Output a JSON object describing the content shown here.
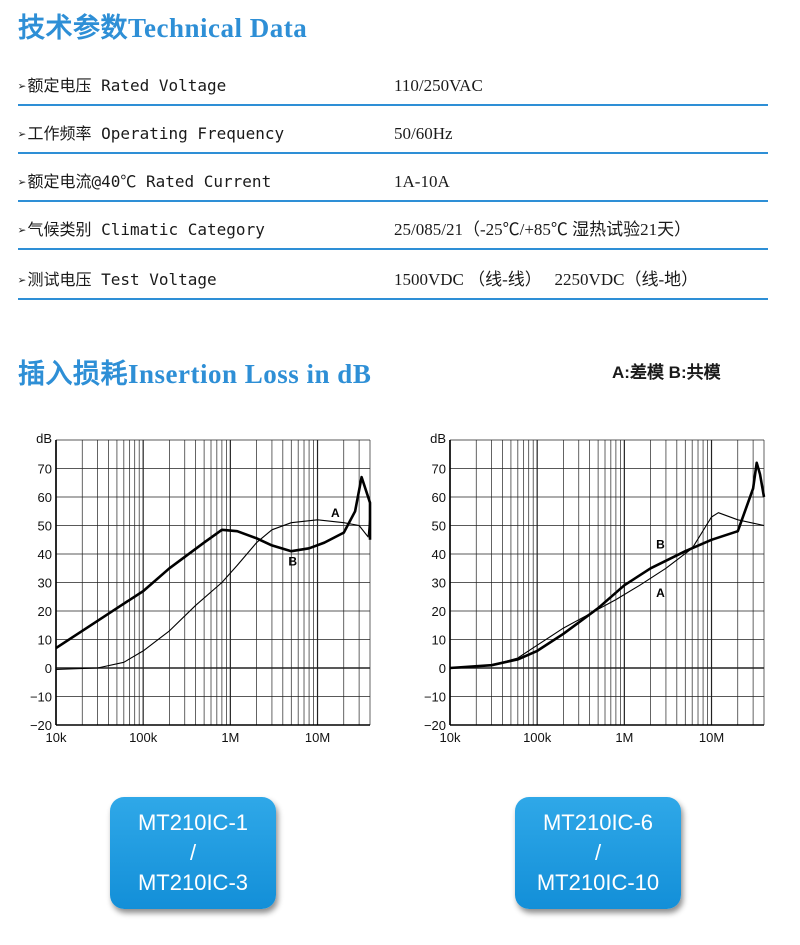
{
  "tech": {
    "title": "技术参数Technical Data",
    "rows": [
      {
        "label": "额定电压 Rated Voltage",
        "value": "110/250VAC"
      },
      {
        "label": "工作频率 Operating Frequency",
        "value": "50/60Hz"
      },
      {
        "label": "额定电流@40℃ Rated Current",
        "value": "1A-10A"
      },
      {
        "label": "气候类别 Climatic Category",
        "value": "25/085/21（-25℃/+85℃ 湿热试验21天）"
      },
      {
        "label": "测试电压 Test Voltage",
        "value": "1500VDC （线-线）   2250VDC（线-地）"
      }
    ]
  },
  "loss": {
    "title": "插入损耗Insertion Loss in dB",
    "legend": "A:差模 B:共模"
  },
  "colors": {
    "accent": "#2e8fd6",
    "button": "#1a9be0"
  },
  "chart_data": [
    {
      "type": "line",
      "ylabel": "dB",
      "ylim": [
        -20,
        80
      ],
      "yticks": [
        70,
        60,
        50,
        40,
        30,
        20,
        10,
        0,
        -10,
        -20
      ],
      "xscale": "log",
      "xlim": [
        10000,
        40000000
      ],
      "xticks": [
        {
          "v": 10000,
          "label": "10k"
        },
        {
          "v": 100000,
          "label": "100k"
        },
        {
          "v": 1000000,
          "label": "1M"
        },
        {
          "v": 10000000,
          "label": "10M"
        }
      ],
      "grid": true,
      "series": [
        {
          "name": "A",
          "label_at": [
            16000000,
            53
          ],
          "style": "thick",
          "points": [
            [
              10000,
              7
            ],
            [
              20000,
              13
            ],
            [
              50000,
              21
            ],
            [
              100000,
              27
            ],
            [
              200000,
              35
            ],
            [
              500000,
              44
            ],
            [
              800000,
              48.5
            ],
            [
              1200000,
              48
            ],
            [
              2000000,
              45.5
            ],
            [
              3000000,
              43
            ],
            [
              5000000,
              41
            ],
            [
              8000000,
              42
            ],
            [
              12000000,
              44
            ],
            [
              20000000,
              47.5
            ],
            [
              27000000,
              55
            ],
            [
              32000000,
              67
            ],
            [
              40000000,
              58
            ],
            [
              40000000,
              45
            ]
          ]
        },
        {
          "name": "B",
          "label_at": [
            5200000,
            36
          ],
          "style": "thin",
          "points": [
            [
              10000,
              -0.5
            ],
            [
              30000,
              0
            ],
            [
              60000,
              2
            ],
            [
              100000,
              6
            ],
            [
              200000,
              13
            ],
            [
              400000,
              22
            ],
            [
              800000,
              30
            ],
            [
              1200000,
              36
            ],
            [
              2000000,
              44
            ],
            [
              3000000,
              48.5
            ],
            [
              5000000,
              51
            ],
            [
              10000000,
              52
            ],
            [
              20000000,
              51
            ],
            [
              30000000,
              50
            ],
            [
              38000000,
              46
            ],
            [
              40000000,
              54
            ]
          ]
        }
      ]
    },
    {
      "type": "line",
      "ylabel": "dB",
      "ylim": [
        -20,
        80
      ],
      "yticks": [
        70,
        60,
        50,
        40,
        30,
        20,
        10,
        0,
        -10,
        -20
      ],
      "xscale": "log",
      "xlim": [
        10000,
        40000000
      ],
      "xticks": [
        {
          "v": 10000,
          "label": "10k"
        },
        {
          "v": 100000,
          "label": "100k"
        },
        {
          "v": 1000000,
          "label": "1M"
        },
        {
          "v": 10000000,
          "label": "10M"
        }
      ],
      "grid": true,
      "series": [
        {
          "name": "A",
          "label_at": [
            2600000,
            25
          ],
          "style": "thin",
          "points": [
            [
              10000,
              0
            ],
            [
              30000,
              1
            ],
            [
              60000,
              3.5
            ],
            [
              100000,
              8
            ],
            [
              200000,
              14
            ],
            [
              400000,
              19
            ],
            [
              800000,
              24
            ],
            [
              1500000,
              29
            ],
            [
              3000000,
              35
            ],
            [
              6000000,
              42
            ],
            [
              10000000,
              53
            ],
            [
              12000000,
              54.5
            ],
            [
              20000000,
              52
            ],
            [
              40000000,
              50
            ]
          ]
        },
        {
          "name": "B",
          "label_at": [
            2600000,
            42
          ],
          "style": "thick",
          "points": [
            [
              10000,
              0
            ],
            [
              30000,
              1
            ],
            [
              60000,
              3
            ],
            [
              100000,
              6
            ],
            [
              200000,
              12
            ],
            [
              500000,
              21
            ],
            [
              1000000,
              29
            ],
            [
              2000000,
              35
            ],
            [
              5000000,
              41
            ],
            [
              10000000,
              45
            ],
            [
              20000000,
              48
            ],
            [
              30000000,
              63
            ],
            [
              33000000,
              72
            ],
            [
              36000000,
              68
            ],
            [
              40000000,
              60
            ]
          ]
        }
      ]
    }
  ],
  "models": [
    {
      "line1": "MT210IC-1",
      "line2": "/",
      "line3": "MT210IC-3"
    },
    {
      "line1": "MT210IC-6",
      "line2": "/",
      "line3": "MT210IC-10"
    }
  ]
}
